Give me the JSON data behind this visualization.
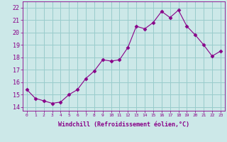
{
  "x": [
    0,
    1,
    2,
    3,
    4,
    5,
    6,
    7,
    8,
    9,
    10,
    11,
    12,
    13,
    14,
    15,
    16,
    17,
    18,
    19,
    20,
    21,
    22,
    23
  ],
  "y": [
    15.4,
    14.7,
    14.5,
    14.3,
    14.4,
    15.0,
    15.4,
    16.3,
    16.9,
    17.8,
    17.7,
    17.8,
    18.8,
    20.5,
    20.3,
    20.8,
    21.7,
    21.2,
    21.8,
    20.5,
    19.8,
    19.0,
    18.1,
    18.5
  ],
  "line_color": "#880088",
  "marker": "D",
  "marker_size": 2.5,
  "background_color": "#cce8e8",
  "grid_color": "#99cccc",
  "ylabel_ticks": [
    14,
    15,
    16,
    17,
    18,
    19,
    20,
    21,
    22
  ],
  "xtick_labels": [
    "0",
    "1",
    "2",
    "3",
    "4",
    "5",
    "6",
    "7",
    "8",
    "9",
    "10",
    "11",
    "12",
    "13",
    "14",
    "15",
    "16",
    "17",
    "18",
    "19",
    "20",
    "21",
    "22",
    "23"
  ],
  "xlabel": "Windchill (Refroidissement éolien,°C)",
  "ylim": [
    13.7,
    22.5
  ],
  "xlim": [
    -0.5,
    23.5
  ],
  "axis_label_color": "#880088",
  "tick_color": "#880088"
}
